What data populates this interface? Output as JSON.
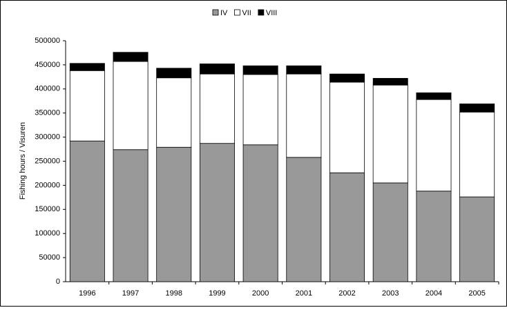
{
  "chart_data": {
    "type": "stacked-bar",
    "y_label": "Fishing hours / Visuren",
    "categories": [
      "1996",
      "1997",
      "1998",
      "1999",
      "2000",
      "2001",
      "2002",
      "2003",
      "2004",
      "2005"
    ],
    "series": [
      {
        "name": "IV",
        "color": "#999999",
        "values": [
          292000,
          274000,
          279000,
          287000,
          284000,
          258000,
          226000,
          205000,
          188000,
          176000
        ]
      },
      {
        "name": "VII",
        "color": "#ffffff",
        "values": [
          146000,
          183000,
          144000,
          144000,
          146000,
          173000,
          188000,
          203000,
          190000,
          176000
        ]
      },
      {
        "name": "VIII",
        "color": "#000000",
        "values": [
          15000,
          19000,
          20000,
          21000,
          18000,
          17000,
          17000,
          14000,
          14000,
          17000
        ]
      }
    ],
    "ylim": [
      0,
      500000
    ],
    "yticks": [
      0,
      50000,
      100000,
      150000,
      200000,
      250000,
      300000,
      350000,
      400000,
      450000,
      500000
    ],
    "grid": false,
    "legend": "top"
  }
}
